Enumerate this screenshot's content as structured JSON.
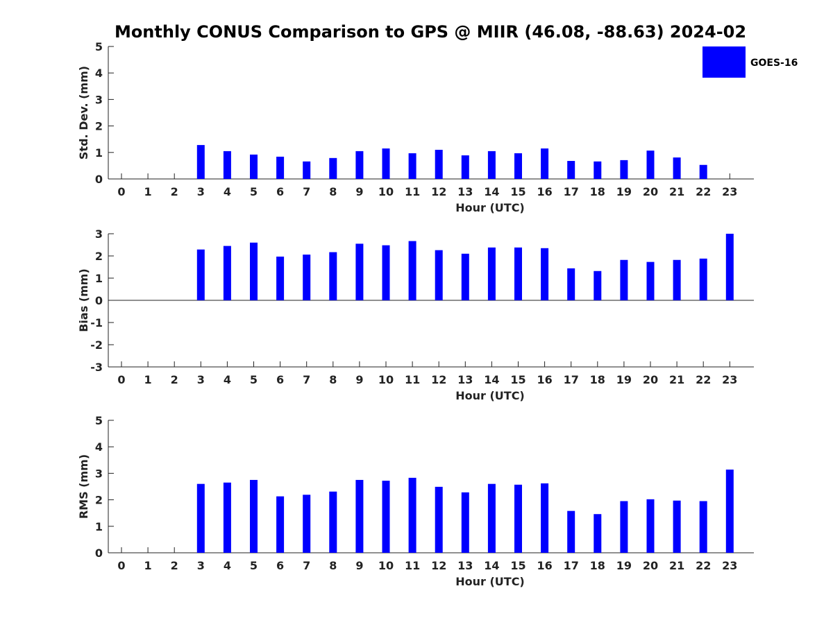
{
  "title": "Monthly CONUS Comparison to GPS @ MIIR (46.08, -88.63) 2024-02",
  "legend": {
    "label": "GOES-16",
    "color": "#0000ff"
  },
  "chart_data": [
    {
      "type": "bar",
      "xlabel": "Hour (UTC)",
      "ylabel": "Std. Dev. (mm)",
      "ylim": [
        0,
        5
      ],
      "yticks": [
        0,
        1,
        2,
        3,
        4,
        5
      ],
      "categories": [
        "0",
        "1",
        "2",
        "3",
        "4",
        "5",
        "6",
        "7",
        "8",
        "9",
        "10",
        "11",
        "12",
        "13",
        "14",
        "15",
        "16",
        "17",
        "18",
        "19",
        "20",
        "21",
        "22",
        "23"
      ],
      "series": [
        {
          "name": "GOES-16",
          "values": [
            null,
            null,
            null,
            1.28,
            1.05,
            0.92,
            0.84,
            0.66,
            0.79,
            1.05,
            1.15,
            0.97,
            1.1,
            0.89,
            1.05,
            0.97,
            1.15,
            0.68,
            0.66,
            0.71,
            1.07,
            0.81,
            0.53,
            null
          ]
        }
      ]
    },
    {
      "type": "bar",
      "xlabel": "Hour (UTC)",
      "ylabel": "Bias (mm)",
      "ylim": [
        -3,
        3
      ],
      "yticks": [
        -3,
        -2,
        -1,
        0,
        1,
        2,
        3
      ],
      "categories": [
        "0",
        "1",
        "2",
        "3",
        "4",
        "5",
        "6",
        "7",
        "8",
        "9",
        "10",
        "11",
        "12",
        "13",
        "14",
        "15",
        "16",
        "17",
        "18",
        "19",
        "20",
        "21",
        "22",
        "23"
      ],
      "series": [
        {
          "name": "GOES-16",
          "values": [
            null,
            null,
            null,
            2.29,
            2.45,
            2.6,
            1.97,
            2.06,
            2.17,
            2.55,
            2.48,
            2.67,
            2.26,
            2.1,
            2.38,
            2.38,
            2.35,
            1.44,
            1.32,
            1.82,
            1.73,
            1.82,
            1.88,
            3.0
          ]
        }
      ]
    },
    {
      "type": "bar",
      "xlabel": "Hour (UTC)",
      "ylabel": "RMS (mm)",
      "ylim": [
        0,
        5
      ],
      "yticks": [
        0,
        1,
        2,
        3,
        4,
        5
      ],
      "categories": [
        "0",
        "1",
        "2",
        "3",
        "4",
        "5",
        "6",
        "7",
        "8",
        "9",
        "10",
        "11",
        "12",
        "13",
        "14",
        "15",
        "16",
        "17",
        "18",
        "19",
        "20",
        "21",
        "22",
        "23"
      ],
      "series": [
        {
          "name": "GOES-16",
          "values": [
            null,
            null,
            null,
            2.6,
            2.65,
            2.75,
            2.13,
            2.19,
            2.31,
            2.75,
            2.72,
            2.83,
            2.49,
            2.28,
            2.6,
            2.57,
            2.62,
            1.58,
            1.46,
            1.95,
            2.02,
            1.97,
            1.95,
            3.14
          ]
        }
      ]
    }
  ]
}
